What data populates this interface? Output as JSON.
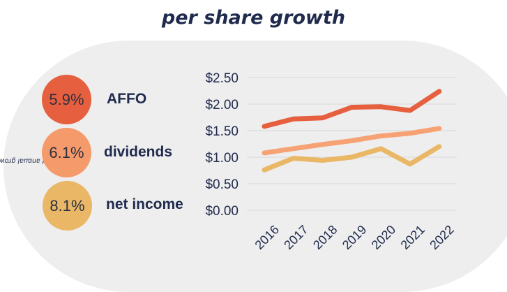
{
  "title": "per share growth",
  "side_label": "compound annual growth rate",
  "side_label_footnote": "1",
  "metrics": [
    {
      "rate": "5.9%",
      "label": "AFFO",
      "color": "#e65f3e"
    },
    {
      "rate": "6.1%",
      "label": "dividends",
      "color": "#f59a6b"
    },
    {
      "rate": "8.1%",
      "label": "net income",
      "color": "#e9b766"
    }
  ],
  "chart_data": {
    "type": "line",
    "categories": [
      "2016",
      "2017",
      "2018",
      "2019",
      "2020",
      "2021",
      "2022"
    ],
    "y_ticks": [
      "$0.00",
      "$0.50",
      "$1.00",
      "$1.50",
      "$2.00",
      "$2.50"
    ],
    "ylim": [
      0,
      2.5
    ],
    "grid": true,
    "series": [
      {
        "name": "AFFO",
        "color": "#e65f3e",
        "values": [
          1.58,
          1.72,
          1.74,
          1.94,
          1.95,
          1.88,
          2.24
        ]
      },
      {
        "name": "dividends",
        "color": "#f7a274",
        "values": [
          1.08,
          1.16,
          1.24,
          1.31,
          1.4,
          1.45,
          1.54
        ]
      },
      {
        "name": "net income",
        "color": "#e9b766",
        "values": [
          0.76,
          0.98,
          0.94,
          1.0,
          1.16,
          0.87,
          1.2
        ]
      }
    ]
  }
}
